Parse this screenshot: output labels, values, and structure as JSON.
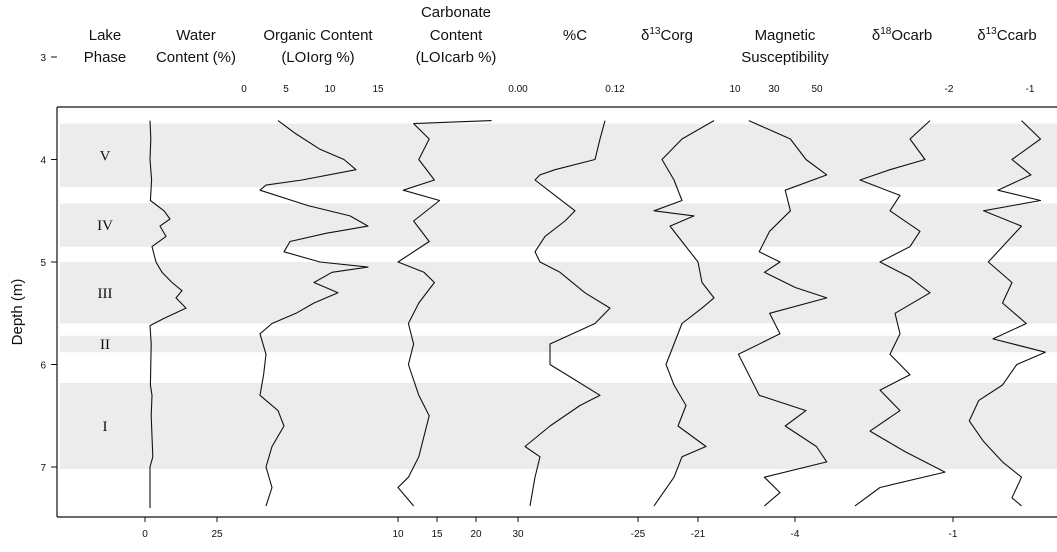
{
  "chart_data": {
    "type": "line",
    "ylabel": "Depth (m)",
    "ylim": [
      3,
      7.4
    ],
    "yticks": [
      "3",
      "4",
      "5",
      "6",
      "7"
    ],
    "phases": [
      {
        "label": "V",
        "top": 3.65,
        "bottom": 4.27
      },
      {
        "label": "IV",
        "top": 4.43,
        "bottom": 4.85
      },
      {
        "label": "III",
        "top": 5.0,
        "bottom": 5.6
      },
      {
        "label": "II",
        "top": 5.72,
        "bottom": 5.88
      },
      {
        "label": "I",
        "top": 6.18,
        "bottom": 7.02
      }
    ],
    "columns": [
      {
        "key": "phase",
        "title": [
          "Lake",
          "Phase"
        ]
      },
      {
        "key": "water",
        "title": [
          "Water",
          "Content (%)"
        ],
        "bottom_ticks": [
          "0",
          "25"
        ],
        "series": [
          [
            3.62,
            0.05
          ],
          [
            3.8,
            0.07
          ],
          [
            4.0,
            0.05
          ],
          [
            4.2,
            0.09
          ],
          [
            4.4,
            0.06
          ],
          [
            4.5,
            0.4
          ],
          [
            4.58,
            0.55
          ],
          [
            4.65,
            0.3
          ],
          [
            4.75,
            0.45
          ],
          [
            4.85,
            0.1
          ],
          [
            5.0,
            0.2
          ],
          [
            5.1,
            0.35
          ],
          [
            5.2,
            0.6
          ],
          [
            5.28,
            0.85
          ],
          [
            5.35,
            0.7
          ],
          [
            5.45,
            0.95
          ],
          [
            5.55,
            0.4
          ],
          [
            5.62,
            0.05
          ],
          [
            5.8,
            0.08
          ],
          [
            6.0,
            0.07
          ],
          [
            6.2,
            0.06
          ],
          [
            6.3,
            0.1
          ],
          [
            6.5,
            0.08
          ],
          [
            6.7,
            0.1
          ],
          [
            6.9,
            0.12
          ],
          [
            7.0,
            0.05
          ],
          [
            7.4,
            0.05
          ]
        ]
      },
      {
        "key": "loi_org",
        "title": [
          "Organic Content",
          "(LOIorg %)"
        ],
        "top_ticks": [
          "0",
          "5",
          "10",
          "15"
        ],
        "series": [
          [
            3.62,
            0.2
          ],
          [
            3.75,
            0.35
          ],
          [
            3.9,
            0.55
          ],
          [
            4.0,
            0.75
          ],
          [
            4.1,
            0.85
          ],
          [
            4.2,
            0.4
          ],
          [
            4.25,
            0.1
          ],
          [
            4.3,
            0.05
          ],
          [
            4.45,
            0.45
          ],
          [
            4.55,
            0.8
          ],
          [
            4.65,
            0.95
          ],
          [
            4.72,
            0.6
          ],
          [
            4.8,
            0.3
          ],
          [
            4.9,
            0.25
          ],
          [
            5.0,
            0.55
          ],
          [
            5.05,
            0.95
          ],
          [
            5.1,
            0.65
          ],
          [
            5.2,
            0.5
          ],
          [
            5.3,
            0.7
          ],
          [
            5.4,
            0.5
          ],
          [
            5.5,
            0.35
          ],
          [
            5.6,
            0.15
          ],
          [
            5.7,
            0.05
          ],
          [
            5.9,
            0.1
          ],
          [
            6.1,
            0.08
          ],
          [
            6.3,
            0.05
          ],
          [
            6.45,
            0.2
          ],
          [
            6.6,
            0.25
          ],
          [
            6.8,
            0.15
          ],
          [
            7.0,
            0.1
          ],
          [
            7.2,
            0.15
          ],
          [
            7.38,
            0.1
          ]
        ]
      },
      {
        "key": "loi_carb",
        "title": [
          "Carbonate",
          "Content",
          "(LOIcarb %)"
        ],
        "bottom_ticks": [
          "10",
          "15",
          "20"
        ],
        "series": [
          [
            3.62,
            0.9
          ],
          [
            3.65,
            0.15
          ],
          [
            3.8,
            0.3
          ],
          [
            4.0,
            0.2
          ],
          [
            4.2,
            0.35
          ],
          [
            4.3,
            0.05
          ],
          [
            4.4,
            0.4
          ],
          [
            4.6,
            0.15
          ],
          [
            4.8,
            0.3
          ],
          [
            5.0,
            0.0
          ],
          [
            5.1,
            0.25
          ],
          [
            5.2,
            0.35
          ],
          [
            5.4,
            0.2
          ],
          [
            5.6,
            0.1
          ],
          [
            5.8,
            0.15
          ],
          [
            6.0,
            0.1
          ],
          [
            6.3,
            0.2
          ],
          [
            6.5,
            0.3
          ],
          [
            6.7,
            0.25
          ],
          [
            6.9,
            0.2
          ],
          [
            7.1,
            0.1
          ],
          [
            7.2,
            0.0
          ],
          [
            7.38,
            0.15
          ]
        ]
      },
      {
        "key": "pct_c",
        "title": [
          "%C"
        ],
        "top_ticks": [
          "0.00",
          "0.12"
        ],
        "bottom_ticks": [
          "30"
        ],
        "series": [
          [
            3.62,
            0.85
          ],
          [
            3.8,
            0.8
          ],
          [
            4.0,
            0.75
          ],
          [
            4.1,
            0.35
          ],
          [
            4.15,
            0.2
          ],
          [
            4.2,
            0.15
          ],
          [
            4.35,
            0.35
          ],
          [
            4.5,
            0.55
          ],
          [
            4.6,
            0.45
          ],
          [
            4.75,
            0.25
          ],
          [
            4.9,
            0.15
          ],
          [
            5.0,
            0.2
          ],
          [
            5.1,
            0.4
          ],
          [
            5.3,
            0.65
          ],
          [
            5.45,
            0.9
          ],
          [
            5.6,
            0.75
          ],
          [
            5.8,
            0.3
          ],
          [
            6.0,
            0.3
          ],
          [
            6.15,
            0.55
          ],
          [
            6.3,
            0.8
          ],
          [
            6.4,
            0.6
          ],
          [
            6.6,
            0.3
          ],
          [
            6.8,
            0.05
          ],
          [
            6.9,
            0.2
          ],
          [
            7.1,
            0.15
          ],
          [
            7.38,
            0.1
          ]
        ]
      },
      {
        "key": "d13c_org",
        "title": [
          "δ13Corg"
        ],
        "bottom_ticks": [
          "-25",
          "-21"
        ],
        "series": [
          [
            3.62,
            0.95
          ],
          [
            3.8,
            0.55
          ],
          [
            4.0,
            0.3
          ],
          [
            4.2,
            0.45
          ],
          [
            4.4,
            0.55
          ],
          [
            4.5,
            0.2
          ],
          [
            4.55,
            0.7
          ],
          [
            4.65,
            0.4
          ],
          [
            4.8,
            0.55
          ],
          [
            5.0,
            0.75
          ],
          [
            5.2,
            0.8
          ],
          [
            5.35,
            0.95
          ],
          [
            5.45,
            0.8
          ],
          [
            5.6,
            0.55
          ],
          [
            5.8,
            0.45
          ],
          [
            6.0,
            0.35
          ],
          [
            6.2,
            0.45
          ],
          [
            6.4,
            0.6
          ],
          [
            6.6,
            0.5
          ],
          [
            6.8,
            0.85
          ],
          [
            6.9,
            0.55
          ],
          [
            7.1,
            0.45
          ],
          [
            7.38,
            0.2
          ]
        ]
      },
      {
        "key": "mag_sus",
        "title": [
          "Magnetic",
          "Susceptibility"
        ],
        "top_ticks": [
          "10",
          "30",
          "50"
        ],
        "bottom_ticks": [
          "-4"
        ],
        "series": [
          [
            3.62,
            0.2
          ],
          [
            3.8,
            0.6
          ],
          [
            4.0,
            0.75
          ],
          [
            4.15,
            0.95
          ],
          [
            4.3,
            0.55
          ],
          [
            4.5,
            0.6
          ],
          [
            4.7,
            0.4
          ],
          [
            4.9,
            0.3
          ],
          [
            5.0,
            0.5
          ],
          [
            5.1,
            0.35
          ],
          [
            5.25,
            0.65
          ],
          [
            5.35,
            0.95
          ],
          [
            5.5,
            0.4
          ],
          [
            5.7,
            0.5
          ],
          [
            5.9,
            0.1
          ],
          [
            6.1,
            0.2
          ],
          [
            6.3,
            0.3
          ],
          [
            6.45,
            0.75
          ],
          [
            6.6,
            0.55
          ],
          [
            6.8,
            0.85
          ],
          [
            6.95,
            0.95
          ],
          [
            7.1,
            0.35
          ],
          [
            7.25,
            0.5
          ],
          [
            7.38,
            0.35
          ]
        ]
      },
      {
        "key": "d18o_carb",
        "title": [
          "δ18Ocarb"
        ],
        "top_ticks": [
          "-2"
        ],
        "bottom_ticks": [
          "-1"
        ],
        "series": [
          [
            3.62,
            0.8
          ],
          [
            3.8,
            0.6
          ],
          [
            4.0,
            0.75
          ],
          [
            4.1,
            0.4
          ],
          [
            4.2,
            0.1
          ],
          [
            4.35,
            0.5
          ],
          [
            4.5,
            0.4
          ],
          [
            4.7,
            0.7
          ],
          [
            4.85,
            0.6
          ],
          [
            5.0,
            0.3
          ],
          [
            5.15,
            0.6
          ],
          [
            5.3,
            0.8
          ],
          [
            5.5,
            0.45
          ],
          [
            5.7,
            0.5
          ],
          [
            5.9,
            0.4
          ],
          [
            6.1,
            0.6
          ],
          [
            6.25,
            0.3
          ],
          [
            6.45,
            0.5
          ],
          [
            6.65,
            0.2
          ],
          [
            6.85,
            0.55
          ],
          [
            7.05,
            0.95
          ],
          [
            7.2,
            0.3
          ],
          [
            7.38,
            0.05
          ]
        ]
      },
      {
        "key": "d13c_carb",
        "title": [
          "δ13Ccarb"
        ],
        "top_ticks": [
          "-1"
        ],
        "series": [
          [
            3.62,
            0.7
          ],
          [
            3.8,
            0.9
          ],
          [
            4.0,
            0.6
          ],
          [
            4.15,
            0.8
          ],
          [
            4.3,
            0.45
          ],
          [
            4.4,
            0.9
          ],
          [
            4.5,
            0.3
          ],
          [
            4.65,
            0.7
          ],
          [
            4.85,
            0.5
          ],
          [
            5.0,
            0.35
          ],
          [
            5.2,
            0.6
          ],
          [
            5.4,
            0.5
          ],
          [
            5.6,
            0.75
          ],
          [
            5.75,
            0.4
          ],
          [
            5.88,
            0.95
          ],
          [
            6.0,
            0.65
          ],
          [
            6.2,
            0.5
          ],
          [
            6.35,
            0.25
          ],
          [
            6.55,
            0.15
          ],
          [
            6.75,
            0.3
          ],
          [
            6.95,
            0.5
          ],
          [
            7.1,
            0.7
          ],
          [
            7.3,
            0.6
          ],
          [
            7.38,
            0.7
          ]
        ]
      }
    ]
  }
}
